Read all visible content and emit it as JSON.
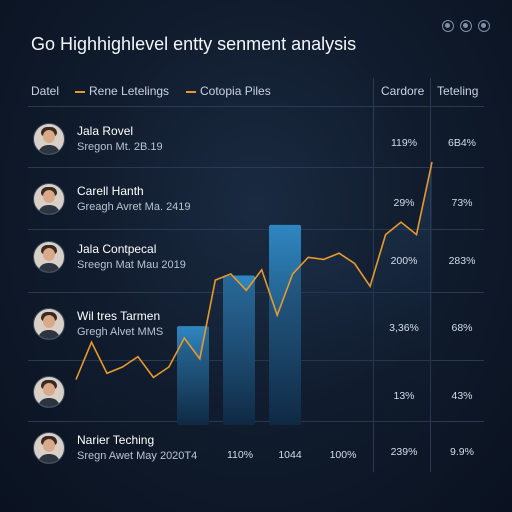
{
  "window": {
    "controls": [
      "settings-icon",
      "refresh-icon",
      "close-icon"
    ]
  },
  "title": "Go Highhighlevel entty senment analysis",
  "header": {
    "col1": "Datel",
    "legend1": "Rene Letelings",
    "legend2": "Cotopia Piles",
    "col3": "Cardore",
    "col4": "Teteling"
  },
  "rows": [
    {
      "name": "Jala Rovel",
      "sub": "Sregon Mt. 2B.19",
      "c3": "119%",
      "c4": "6B4%"
    },
    {
      "name": "Carell Hanth",
      "sub": "Greagh Avret Ma. 2419",
      "c3": "29%",
      "c4": "73%"
    },
    {
      "name": "Jala Contpecal",
      "sub": "Sreegn Mat Mau 2019",
      "c3": "200%",
      "c4": "283%"
    },
    {
      "name": "Wil tres Tarmen",
      "sub": "Gregh Alvet MMS",
      "c3": "3,36%",
      "c4": "68%"
    },
    {
      "name": "",
      "sub": "",
      "c3": "13%",
      "c4": "43%"
    },
    {
      "name": "Narier Teching",
      "sub": "Sregn Awet May 2020T4",
      "c3": "239%",
      "c4": "9.9%"
    }
  ],
  "footer_values": [
    "110%",
    "1044",
    "100%"
  ],
  "colors": {
    "accent": "#e79a2c",
    "bar_top": "#2f86c0",
    "bar_bottom": "#0f2a45",
    "bg": "#0f1a2b"
  },
  "chart_data": {
    "type": "bar",
    "bars": [
      {
        "index": 3,
        "value": 0.43
      },
      {
        "index": 4,
        "value": 0.65
      },
      {
        "index": 5,
        "value": 0.87
      }
    ],
    "line": [
      0.22,
      0.4,
      0.25,
      0.28,
      0.33,
      0.23,
      0.28,
      0.42,
      0.32,
      0.7,
      0.73,
      0.65,
      0.75,
      0.53,
      0.73,
      0.81,
      0.8,
      0.83,
      0.78,
      0.67,
      0.92,
      0.98,
      0.92,
      1.27
    ]
  }
}
